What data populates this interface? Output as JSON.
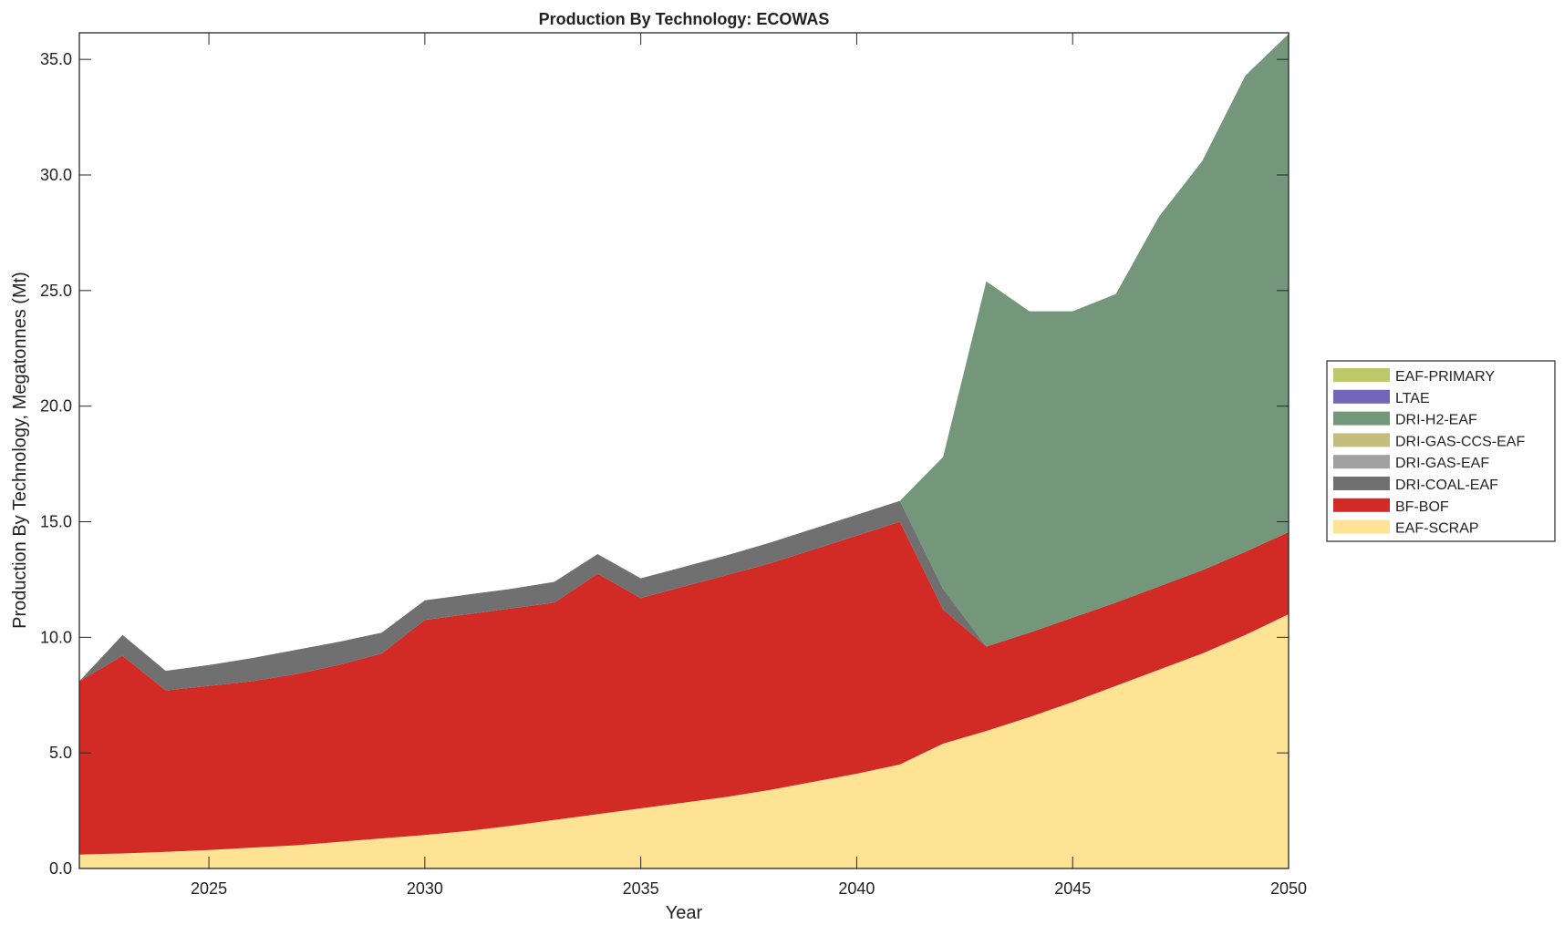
{
  "chart_data": {
    "type": "area",
    "stacked": true,
    "title": "Production By Technology: ECOWAS",
    "xlabel": "Year",
    "ylabel": "Production By Technology, Megatonnes (Mt)",
    "xlim": [
      2022,
      2050
    ],
    "ylim": [
      0,
      36.15
    ],
    "xticks": [
      2025,
      2030,
      2035,
      2040,
      2045,
      2050
    ],
    "yticks": [
      "0.0",
      "5.0",
      "10.0",
      "15.0",
      "20.0",
      "25.0",
      "30.0",
      "35.0"
    ],
    "grid": false,
    "legend_position": "right",
    "x": [
      2022,
      2023,
      2024,
      2025,
      2026,
      2027,
      2028,
      2029,
      2030,
      2031,
      2032,
      2033,
      2034,
      2035,
      2036,
      2037,
      2038,
      2039,
      2040,
      2041,
      2042,
      2043,
      2044,
      2045,
      2046,
      2047,
      2048,
      2049,
      2050
    ],
    "series": [
      {
        "name": "EAF-SCRAP",
        "color": "#FFE395",
        "values": [
          0.6,
          0.65,
          0.72,
          0.8,
          0.9,
          1.0,
          1.15,
          1.3,
          1.45,
          1.62,
          1.85,
          2.1,
          2.35,
          2.6,
          2.85,
          3.1,
          3.4,
          3.75,
          4.1,
          4.5,
          5.4,
          5.95,
          6.55,
          7.2,
          7.9,
          8.6,
          9.3,
          10.1,
          11.0
        ]
      },
      {
        "name": "BF-BOF",
        "color": "#D22B26",
        "values": [
          7.5,
          8.55,
          6.98,
          7.1,
          7.2,
          7.4,
          7.65,
          8.0,
          9.3,
          9.38,
          9.4,
          9.4,
          10.4,
          9.1,
          9.35,
          9.6,
          9.8,
          10.05,
          10.3,
          10.5,
          5.8,
          3.65,
          3.65,
          3.65,
          3.6,
          3.6,
          3.6,
          3.6,
          3.55
        ]
      },
      {
        "name": "DRI-COAL-EAF",
        "color": "#707070",
        "values": [
          0,
          0.9,
          0.85,
          0.9,
          1.0,
          1.05,
          1.0,
          0.9,
          0.85,
          0.85,
          0.85,
          0.9,
          0.85,
          0.85,
          0.85,
          0.85,
          0.9,
          0.9,
          0.9,
          0.9,
          0.9,
          0,
          0,
          0,
          0,
          0,
          0,
          0,
          0
        ]
      },
      {
        "name": "DRI-GAS-EAF",
        "color": "#A0A0A0",
        "values": [
          0,
          0,
          0,
          0,
          0,
          0,
          0,
          0,
          0,
          0,
          0,
          0,
          0,
          0,
          0,
          0,
          0,
          0,
          0,
          0,
          0,
          0,
          0,
          0,
          0,
          0,
          0,
          0,
          0
        ]
      },
      {
        "name": "DRI-GAS-CCS-EAF",
        "color": "#C5BD7D",
        "values": [
          0,
          0,
          0,
          0,
          0,
          0,
          0,
          0,
          0,
          0,
          0,
          0,
          0,
          0,
          0,
          0,
          0,
          0,
          0,
          0,
          0,
          0,
          0,
          0,
          0,
          0,
          0,
          0,
          0
        ]
      },
      {
        "name": "DRI-H2-EAF",
        "color": "#74977B",
        "values": [
          0,
          0,
          0,
          0,
          0,
          0,
          0,
          0,
          0,
          0,
          0,
          0,
          0,
          0,
          0,
          0,
          0,
          0,
          0,
          0,
          5.7,
          15.8,
          13.9,
          13.25,
          13.35,
          16.0,
          17.7,
          20.6,
          21.55
        ]
      },
      {
        "name": "LTAE",
        "color": "#7366B6",
        "values": [
          0,
          0,
          0,
          0,
          0,
          0,
          0,
          0,
          0,
          0,
          0,
          0,
          0,
          0,
          0,
          0,
          0,
          0,
          0,
          0,
          0,
          0,
          0,
          0,
          0,
          0,
          0,
          0,
          0
        ]
      },
      {
        "name": "EAF-PRIMARY",
        "color": "#BCC86A",
        "values": [
          0,
          0,
          0,
          0,
          0,
          0,
          0,
          0,
          0,
          0,
          0,
          0,
          0,
          0,
          0,
          0,
          0,
          0,
          0,
          0,
          0,
          0,
          0,
          0,
          0,
          0,
          0,
          0,
          0
        ]
      }
    ]
  }
}
